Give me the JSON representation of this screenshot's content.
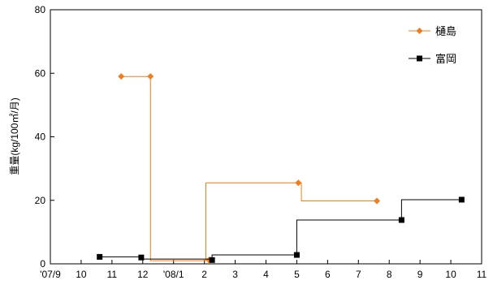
{
  "chart_data": {
    "type": "line",
    "step": true,
    "ylabel": "重量(kg/100㎡/月)",
    "ylim": [
      0,
      80
    ],
    "yticks": [
      0,
      20,
      40,
      60,
      80
    ],
    "xlim": [
      0,
      14
    ],
    "xtick_values": [
      0,
      1,
      2,
      3,
      4,
      5,
      6,
      7,
      8,
      9,
      10,
      11,
      12,
      13,
      14
    ],
    "xtick_labels": [
      "'07/9",
      "10",
      "11",
      "12",
      "'08/1",
      "2",
      "3",
      "4",
      "5",
      "6",
      "7",
      "8",
      "9",
      "10",
      "11"
    ],
    "grid": false,
    "legend_position": "top-right",
    "series": [
      {
        "name": "樋島",
        "color": "#f07d1e",
        "marker": "diamond",
        "points": [
          [
            2.3,
            59
          ],
          [
            3.25,
            59
          ],
          [
            5.15,
            1.2
          ],
          [
            8.05,
            25.5
          ],
          [
            10.6,
            19.8
          ]
        ],
        "steps": [
          [
            2.3,
            59
          ],
          [
            3.25,
            59
          ],
          [
            3.25,
            1
          ],
          [
            5.05,
            1
          ],
          [
            5.05,
            25.5
          ],
          [
            8.15,
            25.5
          ],
          [
            8.15,
            19.8
          ],
          [
            10.6,
            19.8
          ]
        ]
      },
      {
        "name": "富岡",
        "color": "#000000",
        "marker": "square",
        "points": [
          [
            1.6,
            2.2
          ],
          [
            2.95,
            2
          ],
          [
            5.25,
            1.2
          ],
          [
            8.0,
            2.8
          ],
          [
            11.4,
            13.8
          ],
          [
            13.35,
            20.2
          ]
        ],
        "steps": [
          [
            1.6,
            2.2
          ],
          [
            2.95,
            2.2
          ],
          [
            2.95,
            1.5
          ],
          [
            5.25,
            1.5
          ],
          [
            5.25,
            2.8
          ],
          [
            8.0,
            2.8
          ],
          [
            8.0,
            13.8
          ],
          [
            11.4,
            13.8
          ],
          [
            11.4,
            20.2
          ],
          [
            13.35,
            20.2
          ]
        ]
      }
    ]
  }
}
